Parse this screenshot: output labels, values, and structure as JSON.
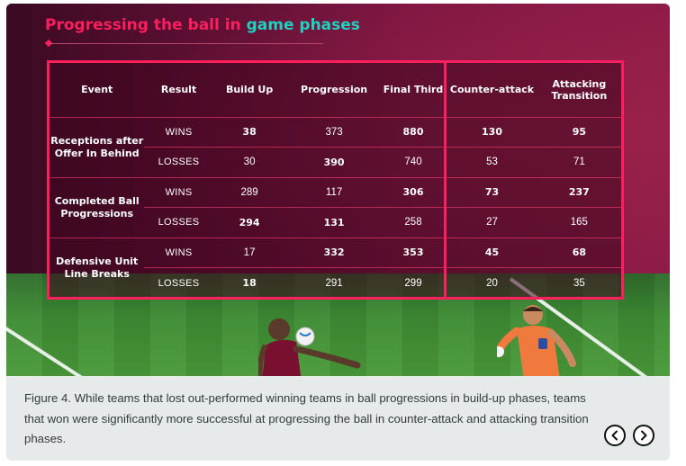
{
  "heading": {
    "part1": "Progressing the ball in ",
    "part2": "game phases"
  },
  "table": {
    "headers": [
      "Event",
      "Result",
      "Build Up",
      "Progression",
      "Final Third",
      "Counter-attack",
      "Attacking Transition"
    ],
    "groups": [
      {
        "event": "Receptions after Offer In Behind",
        "rows": [
          {
            "result": "WINS",
            "values": [
              "38",
              "373",
              "880",
              "130",
              "95"
            ],
            "bold": [
              true,
              false,
              true,
              true,
              true
            ]
          },
          {
            "result": "LOSSES",
            "values": [
              "30",
              "390",
              "740",
              "53",
              "71"
            ],
            "bold": [
              false,
              true,
              false,
              false,
              false
            ]
          }
        ]
      },
      {
        "event": "Completed Ball Progressions",
        "rows": [
          {
            "result": "WINS",
            "values": [
              "289",
              "117",
              "306",
              "73",
              "237"
            ],
            "bold": [
              false,
              false,
              true,
              true,
              true
            ]
          },
          {
            "result": "LOSSES",
            "values": [
              "294",
              "131",
              "258",
              "27",
              "165"
            ],
            "bold": [
              true,
              true,
              false,
              false,
              false
            ]
          }
        ]
      },
      {
        "event": "Defensive Unit Line Breaks",
        "rows": [
          {
            "result": "WINS",
            "values": [
              "17",
              "332",
              "353",
              "45",
              "68"
            ],
            "bold": [
              false,
              true,
              true,
              true,
              true
            ]
          },
          {
            "result": "LOSSES",
            "values": [
              "18",
              "291",
              "299",
              "20",
              "35"
            ],
            "bold": [
              true,
              false,
              false,
              false,
              false
            ]
          }
        ]
      }
    ]
  },
  "caption": "Figure 4. While teams that lost out-performed winning teams in ball progressions in build-up phases, teams that won were significantly more successful at progressing the ball in counter-attack and attacking transition phases.",
  "nav": {
    "prev_icon": "chevron-left-icon",
    "next_icon": "chevron-right-icon"
  },
  "colors": {
    "accent": "#ff1f5e",
    "teal": "#1fd2c0",
    "background": "#6a1238"
  }
}
